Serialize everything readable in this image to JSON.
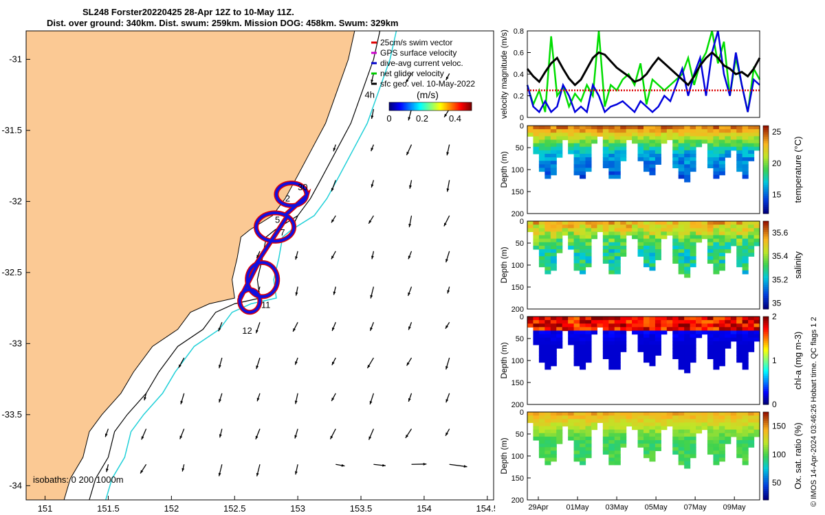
{
  "header": {
    "title_line1": "SL248 Forster20220425 28-Apr 12Z to 10-May 11Z.",
    "title_line2": "Dist. over ground: 340km. Dist. swum: 259km. Mission DOG: 458km. Swum: 329km"
  },
  "credit": "© IMOS 14-Apr-2024 03:46:26 Hobart time. QC flags 1  2",
  "chart_data": [
    {
      "type": "map",
      "name": "glider-track-map",
      "x_ticks": [
        "151",
        "151.5",
        "152",
        "152.5",
        "153",
        "153.5",
        "154",
        "154.5"
      ],
      "y_ticks": [
        "-31",
        "-31.5",
        "-32",
        "-32.5",
        "-33",
        "-33.5",
        "-34"
      ],
      "xlim": [
        150.85,
        154.55
      ],
      "ylim": [
        -34.1,
        -30.8
      ],
      "legend": [
        {
          "label": "25cm/s swim vector",
          "color": "#e00000"
        },
        {
          "label": "GPS surface velocity",
          "color": "#cc00cc"
        },
        {
          "label": "dive-avg current veloc.",
          "color": "#0000cc"
        },
        {
          "label": "net glider velocity",
          "color": "#00cc00"
        },
        {
          "label": "sfc geo. vel. 10-May-2022",
          "color": "#000000"
        }
      ],
      "colorbar": {
        "label": "(m/s)",
        "ticks": [
          "0",
          "0.2",
          "0.4"
        ],
        "range": [
          0,
          0.5
        ]
      },
      "isobath_label": "isobaths: 0   200  1000m",
      "day_labels": [
        {
          "text": "4h",
          "lon": 153.53,
          "lat": -31.27
        },
        {
          "text": "30",
          "lon": 153.0,
          "lat": -31.92
        },
        {
          "text": "2",
          "lon": 152.9,
          "lat": -32.0
        },
        {
          "text": "5",
          "lon": 152.82,
          "lat": -32.15
        },
        {
          "text": "7",
          "lon": 152.86,
          "lat": -32.24
        },
        {
          "text": "11",
          "lon": 152.71,
          "lat": -32.75
        },
        {
          "text": "12",
          "lon": 152.56,
          "lat": -32.93
        }
      ]
    },
    {
      "type": "line",
      "name": "velocity-magnitude",
      "ylabel": "velocity magnitude (m/s)",
      "ylim": [
        0,
        0.8
      ],
      "y_ticks": [
        "0",
        "0.2",
        "0.4",
        "0.6",
        "0.8"
      ],
      "series": [
        {
          "name": "net glider velocity",
          "color": "#00dd00",
          "values": [
            0.3,
            0.12,
            0.25,
            0.05,
            0.75,
            0.2,
            0.28,
            0.1,
            0.22,
            0.15,
            0.3,
            0.2,
            0.8,
            0.1,
            0.3,
            0.25,
            0.35,
            0.4,
            0.3,
            0.5,
            0.12,
            0.35,
            0.3,
            0.25,
            0.3,
            0.35,
            0.4,
            0.55,
            0.3,
            0.5,
            0.6,
            0.8,
            0.5,
            0.7,
            0.2,
            0.55,
            0.3,
            0.05,
            0.45,
            0.35
          ]
        },
        {
          "name": "dive-avg current",
          "color": "#0000dd",
          "values": [
            0.3,
            0.1,
            0.05,
            0.15,
            0.05,
            0.1,
            0.3,
            0.2,
            0.05,
            0.1,
            0.05,
            0.3,
            0.2,
            0.05,
            0.1,
            0.12,
            0.15,
            0.1,
            0.05,
            0.15,
            0.1,
            0.05,
            0.1,
            0.2,
            0.15,
            0.3,
            0.45,
            0.2,
            0.4,
            0.55,
            0.2,
            0.6,
            0.8,
            0.4,
            0.2,
            0.6,
            0.3,
            0.05,
            0.35,
            0.3
          ]
        },
        {
          "name": "sfc geo. vel.",
          "color": "#000000",
          "values": [
            0.45,
            0.38,
            0.33,
            0.42,
            0.5,
            0.55,
            0.45,
            0.36,
            0.3,
            0.35,
            0.45,
            0.55,
            0.6,
            0.58,
            0.52,
            0.46,
            0.42,
            0.38,
            0.33,
            0.35,
            0.4,
            0.48,
            0.55,
            0.5,
            0.45,
            0.4,
            0.35,
            0.3,
            0.38,
            0.48,
            0.55,
            0.6,
            0.55,
            0.48,
            0.45,
            0.4,
            0.42,
            0.38,
            0.45,
            0.55
          ]
        },
        {
          "name": "25cm/s swim",
          "color": "#dd0000",
          "values": [
            0.25,
            0.25,
            0.25,
            0.25,
            0.25,
            0.25,
            0.25,
            0.25,
            0.25,
            0.25,
            0.25,
            0.25,
            0.25,
            0.25,
            0.25,
            0.25,
            0.25,
            0.25,
            0.25,
            0.25,
            0.25,
            0.25,
            0.25,
            0.25,
            0.25,
            0.25,
            0.25,
            0.25,
            0.25,
            0.25,
            0.25,
            0.25,
            0.25,
            0.25,
            0.25,
            0.25,
            0.25,
            0.25,
            0.25,
            0.25
          ]
        }
      ]
    },
    {
      "type": "heatmap",
      "name": "temperature-section",
      "ylabel": "Depth (m)",
      "ylim": [
        0,
        200
      ],
      "y_ticks": [
        "0",
        "50",
        "100",
        "150",
        "200"
      ],
      "colorbar_label": "temperature (°C)",
      "colorbar_ticks": [
        "15",
        "20",
        "25"
      ],
      "crange": [
        12,
        26
      ]
    },
    {
      "type": "heatmap",
      "name": "salinity-section",
      "ylabel": "Depth (m)",
      "ylim": [
        0,
        200
      ],
      "y_ticks": [
        "0",
        "50",
        "100",
        "150",
        "200"
      ],
      "colorbar_label": "salinity",
      "colorbar_ticks": [
        "35",
        "35.2",
        "35.4",
        "35.6"
      ],
      "crange": [
        34.95,
        35.7
      ]
    },
    {
      "type": "heatmap",
      "name": "chla-section",
      "ylabel": "Depth (m)",
      "ylim": [
        0,
        200
      ],
      "y_ticks": [
        "0",
        "50",
        "100",
        "150",
        "200"
      ],
      "colorbar_label": "chl-a (mg m-3)",
      "colorbar_ticks": [
        "0",
        "1",
        "2"
      ],
      "crange": [
        0,
        2
      ]
    },
    {
      "type": "heatmap",
      "name": "oxygen-section",
      "ylabel": "Depth (m)",
      "ylim": [
        0,
        200
      ],
      "y_ticks": [
        "0",
        "50",
        "100",
        "150",
        "200"
      ],
      "colorbar_label": "Ox. sat. ratio (%)",
      "colorbar_ticks": [
        "50",
        "100",
        "150"
      ],
      "crange": [
        20,
        175
      ]
    }
  ],
  "time_axis": {
    "ticks": [
      "29Apr",
      "01May",
      "03May",
      "05May",
      "07May",
      "09May"
    ]
  },
  "section_profile": {
    "max_depth": [
      20,
      60,
      100,
      115,
      110,
      70,
      25,
      60,
      110,
      120,
      100,
      40,
      20,
      90,
      120,
      115,
      80,
      30,
      40,
      80,
      100,
      105,
      85,
      40,
      30,
      90,
      120,
      125,
      100,
      45,
      40,
      90,
      120,
      110,
      70,
      50,
      100,
      115,
      80,
      50
    ]
  }
}
